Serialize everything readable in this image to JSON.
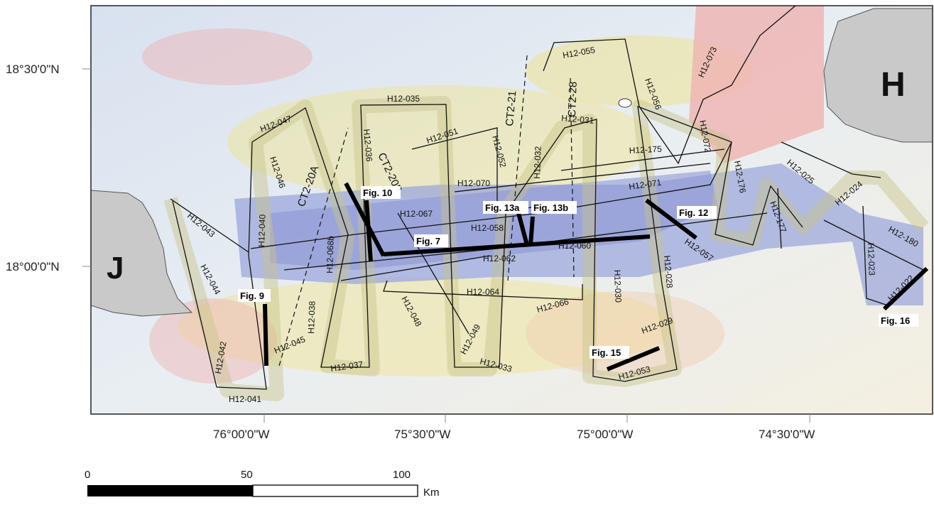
{
  "map": {
    "lat_labels": [
      "18°30'0\"N",
      "18°00'0\"N"
    ],
    "lon_labels": [
      "76°00'0\"W",
      "75°30'0\"W",
      "75°00'0\"W",
      "74°30'0\"W"
    ],
    "land_labels": [
      "J",
      "H"
    ],
    "tracks": [
      "H12-041",
      "H12-042",
      "H12-043",
      "H12-044",
      "H12-040",
      "H12-045",
      "H12-046",
      "H12-047",
      "H12-038",
      "H12-068b",
      "H12-037",
      "H12-036",
      "H12-035",
      "H12-048",
      "H12-067",
      "H12-062",
      "H12-064",
      "H12-049",
      "H12-033",
      "H12-051",
      "H12-052",
      "H12-070",
      "H12-058",
      "H12-066",
      "H12-032",
      "H12-031",
      "H12-055",
      "H12-056",
      "H12-060",
      "H12-030",
      "H12-028",
      "H12-029",
      "H12-053",
      "H12-073",
      "H12-072",
      "H12-175",
      "H12-071",
      "H12-057",
      "H12-176",
      "H12-177",
      "H12-025",
      "H12-024",
      "H12-023",
      "H12-180",
      "H12-022"
    ],
    "seismic_lines": [
      "CT2-20A",
      "CT2-20B",
      "CT2-21",
      "CT2-28"
    ],
    "figures": [
      "Fig. 7",
      "Fig. 9",
      "Fig. 10",
      "Fig. 12",
      "Fig. 13a",
      "Fig. 13b",
      "Fig. 15",
      "Fig. 16"
    ],
    "colors": {
      "deep": "#8f9bd8",
      "mid": "#dfe8f0",
      "shallow": "#f2e27a",
      "shelf": "#f0a7a5",
      "land": "#c9c9c9"
    }
  },
  "scale": {
    "ticks": [
      "0",
      "50",
      "100"
    ],
    "unit": "Km"
  }
}
